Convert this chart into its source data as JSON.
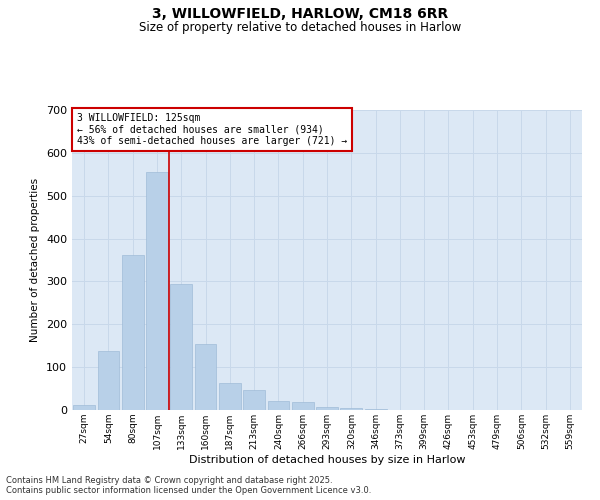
{
  "title_line1": "3, WILLOWFIELD, HARLOW, CM18 6RR",
  "title_line2": "Size of property relative to detached houses in Harlow",
  "xlabel": "Distribution of detached houses by size in Harlow",
  "ylabel": "Number of detached properties",
  "categories": [
    "27sqm",
    "54sqm",
    "80sqm",
    "107sqm",
    "133sqm",
    "160sqm",
    "187sqm",
    "213sqm",
    "240sqm",
    "266sqm",
    "293sqm",
    "320sqm",
    "346sqm",
    "373sqm",
    "399sqm",
    "426sqm",
    "453sqm",
    "479sqm",
    "506sqm",
    "532sqm",
    "559sqm"
  ],
  "values": [
    12,
    138,
    362,
    555,
    295,
    155,
    62,
    47,
    22,
    18,
    8,
    5,
    2,
    1,
    0,
    0,
    0,
    0,
    0,
    0,
    0
  ],
  "bar_color": "#b8d0e8",
  "bar_edge_color": "#a0bcd8",
  "vline_pos": 3.5,
  "vline_color": "#cc0000",
  "annotation_box_color": "#cc0000",
  "ann_line1": "3 WILLOWFIELD: 125sqm",
  "ann_line2": "← 56% of detached houses are smaller (934)",
  "ann_line3": "43% of semi-detached houses are larger (721) →",
  "ylim": [
    0,
    700
  ],
  "yticks": [
    0,
    100,
    200,
    300,
    400,
    500,
    600,
    700
  ],
  "grid_color": "#c8d8ea",
  "bg_color": "#dce8f5",
  "fig_color": "#ffffff",
  "footer_line1": "Contains HM Land Registry data © Crown copyright and database right 2025.",
  "footer_line2": "Contains public sector information licensed under the Open Government Licence v3.0."
}
